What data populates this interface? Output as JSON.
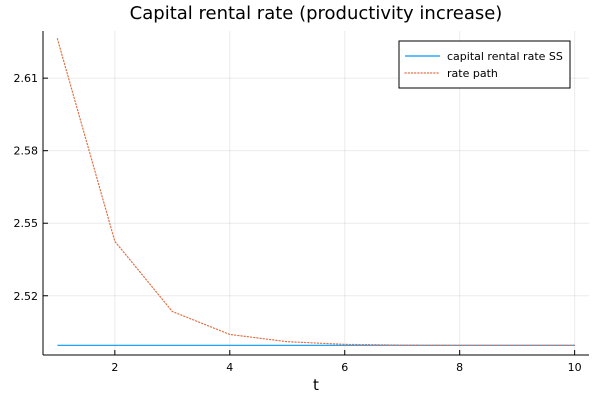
{
  "chart_data": {
    "type": "line",
    "title": "Capital rental rate (productivity increase)",
    "xlabel": "t",
    "ylabel": "",
    "xlim": [
      0.75,
      10.25
    ],
    "ylim": [
      2.4955,
      2.6295
    ],
    "xticks": [
      2,
      4,
      6,
      8,
      10
    ],
    "yticks": [
      2.52,
      2.55,
      2.58,
      2.61
    ],
    "xtick_labels": [
      "2",
      "4",
      "6",
      "8",
      "10"
    ],
    "ytick_labels": [
      "2.52",
      "2.55",
      "2.58",
      "2.61"
    ],
    "grid": true,
    "legend_position": "top-right",
    "series": [
      {
        "name": "capital rental rate SS",
        "style": "solid",
        "color": "#009af9",
        "x": [
          1,
          2,
          3,
          4,
          5,
          6,
          7,
          8,
          9,
          10
        ],
        "y": [
          2.4995,
          2.4995,
          2.4995,
          2.4995,
          2.4995,
          2.4995,
          2.4995,
          2.4995,
          2.4995,
          2.4995
        ]
      },
      {
        "name": "rate path",
        "style": "dotted",
        "color": "#e26f46",
        "x": [
          1,
          2,
          3,
          4,
          5,
          6,
          7,
          8,
          9,
          10
        ],
        "y": [
          2.6263,
          2.5425,
          2.5135,
          2.504,
          2.501,
          2.4999,
          2.4996,
          2.4995,
          2.4995,
          2.4995
        ]
      }
    ]
  }
}
